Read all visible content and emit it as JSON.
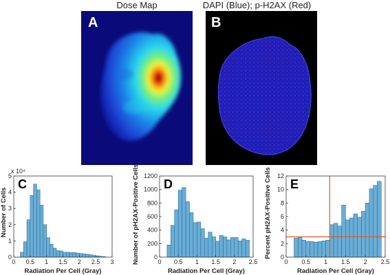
{
  "panelA": {
    "title": "Dose Map",
    "letter": "A"
  },
  "panelB": {
    "title": "DAPI (Blue); p-H2AX (Red)",
    "letter": "B"
  },
  "chart_data": [
    {
      "type": "bar",
      "letter": "C",
      "xlabel": "Radiation Per Cell (Gray)",
      "ylabel": "Number of Cells",
      "y_multiplier_label": "x 10⁴",
      "xlim": [
        0,
        3
      ],
      "ylim": [
        0,
        5
      ],
      "xticks": [
        0,
        0.5,
        1,
        1.5,
        2,
        2.5,
        3
      ],
      "xtick_labels": [
        "0",
        "0.5",
        "1",
        "1.5",
        "2",
        "2.5",
        "3"
      ],
      "yticks": [
        0,
        1,
        2,
        3,
        4,
        5
      ],
      "bin_width": 0.1,
      "bin_starts": [
        0.2,
        0.3,
        0.4,
        0.5,
        0.6,
        0.7,
        0.8,
        0.9,
        1.0,
        1.1,
        1.2,
        1.3,
        1.4,
        1.5,
        1.6,
        1.7,
        1.8,
        1.9,
        2.0,
        2.1,
        2.2,
        2.3,
        2.4,
        2.5,
        2.6,
        2.7
      ],
      "values": [
        0.3,
        0.95,
        2.3,
        3.8,
        4.5,
        4.15,
        3.2,
        2.0,
        1.2,
        0.8,
        0.55,
        0.4,
        0.38,
        0.3,
        0.3,
        0.28,
        0.28,
        0.25,
        0.22,
        0.2,
        0.18,
        0.15,
        0.1,
        0.08,
        0.05,
        0.03
      ]
    },
    {
      "type": "bar",
      "letter": "D",
      "xlabel": "Radiation Per Cell (Gray)",
      "ylabel": "Number of pH2AX-Positive Cells",
      "xlim": [
        0,
        2.5
      ],
      "ylim": [
        0,
        1200
      ],
      "xticks": [
        0,
        0.5,
        1,
        1.5,
        2,
        2.5
      ],
      "xtick_labels": [
        "0",
        "0.5",
        "1",
        "1.5",
        "2",
        "2.5"
      ],
      "yticks": [
        0,
        200,
        400,
        600,
        800,
        1000,
        1200
      ],
      "bin_width": 0.1,
      "bin_starts": [
        0.2,
        0.3,
        0.4,
        0.5,
        0.6,
        0.7,
        0.8,
        0.9,
        1.0,
        1.1,
        1.2,
        1.3,
        1.4,
        1.5,
        1.6,
        1.7,
        1.8,
        1.9,
        2.0,
        2.1,
        2.2,
        2.3
      ],
      "values": [
        180,
        470,
        700,
        990,
        1030,
        820,
        660,
        510,
        520,
        420,
        280,
        370,
        300,
        235,
        320,
        300,
        255,
        290,
        290,
        240,
        270,
        250
      ]
    },
    {
      "type": "bar",
      "letter": "E",
      "xlabel": "Radiation Per Cell (Gray)",
      "ylabel": "Percent pH2AX-Positive Cells",
      "xlim": [
        0,
        2.5
      ],
      "ylim": [
        0,
        12
      ],
      "xticks": [
        0,
        0.5,
        1,
        1.5,
        2,
        2.5
      ],
      "xtick_labels": [
        "0",
        "0.5",
        "1",
        "1.5",
        "2",
        "2.5"
      ],
      "yticks": [
        0,
        2,
        4,
        6,
        8,
        10,
        12
      ],
      "bin_width": 0.1,
      "bin_starts": [
        0.2,
        0.3,
        0.4,
        0.5,
        0.6,
        0.7,
        0.8,
        0.9,
        1.0,
        1.1,
        1.2,
        1.3,
        1.4,
        1.5,
        1.6,
        1.7,
        1.8,
        1.9,
        2.0,
        2.1,
        2.2,
        2.3
      ],
      "values": [
        2.8,
        2.9,
        2.5,
        2.3,
        2.3,
        2.2,
        2.3,
        2.4,
        2.5,
        4.8,
        5.0,
        4.6,
        7.7,
        5.5,
        5.8,
        6.4,
        5.9,
        6.8,
        8.0,
        10.1,
        10.6,
        11.2
      ],
      "reference_lines": {
        "vertical_x": 1.1,
        "horizontal_y": 3.0,
        "color": "#e8541c"
      }
    }
  ],
  "colors": {
    "bar_fill": "#6aaed6",
    "bar_stroke": "#2a6e9a",
    "ref_line": "#e8541c"
  }
}
